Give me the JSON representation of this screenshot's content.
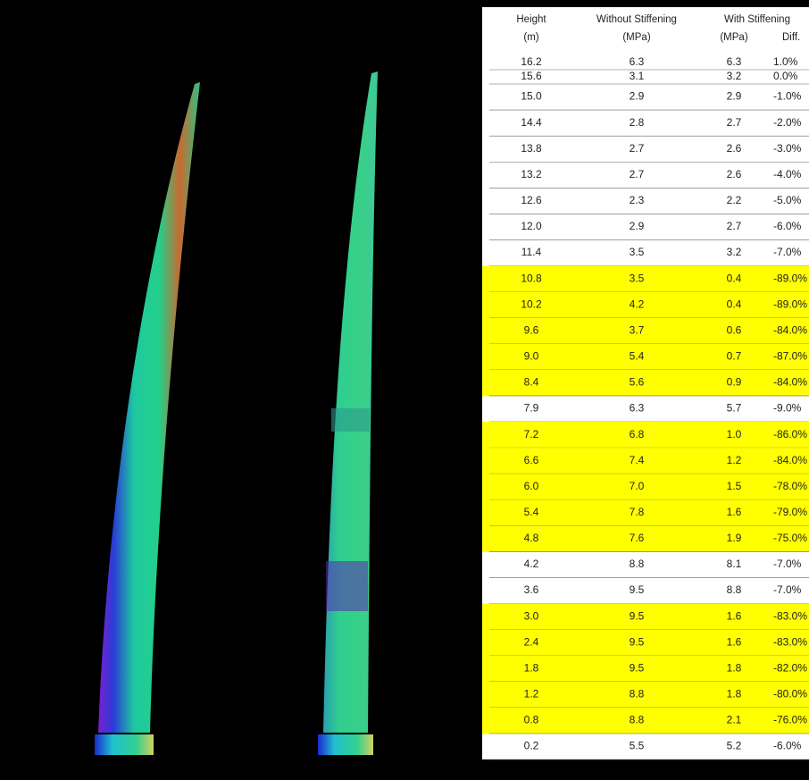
{
  "table": {
    "header_line1": [
      "Height",
      "Without Stiffening",
      "With Stiffening"
    ],
    "header_line2": [
      "(m)",
      "(MPa)",
      "(MPa)",
      "Diff."
    ],
    "rows": [
      {
        "cells": [
          "16.2",
          "6.3",
          "6.3",
          "1.0%"
        ],
        "highlight": false
      },
      {
        "cells": [
          "15.6",
          "3.1",
          "3.2",
          "0.0%"
        ],
        "highlight": false
      },
      {
        "cells": [
          "15.0",
          "2.9",
          "2.9",
          "-1.0%"
        ],
        "highlight": false
      },
      {
        "cells": [
          "14.4",
          "2.8",
          "2.7",
          "-2.0%"
        ],
        "highlight": false
      },
      {
        "cells": [
          "13.8",
          "2.7",
          "2.6",
          "-3.0%"
        ],
        "highlight": false
      },
      {
        "cells": [
          "13.2",
          "2.7",
          "2.6",
          "-4.0%"
        ],
        "highlight": false
      },
      {
        "cells": [
          "12.6",
          "2.3",
          "2.2",
          "-5.0%"
        ],
        "highlight": false
      },
      {
        "cells": [
          "12.0",
          "2.9",
          "2.7",
          "-6.0%"
        ],
        "highlight": false
      },
      {
        "cells": [
          "11.4",
          "3.5",
          "3.2",
          "-7.0%"
        ],
        "highlight": false
      },
      {
        "cells": [
          "10.8",
          "3.5",
          "0.4",
          "-89.0%"
        ],
        "highlight": true
      },
      {
        "cells": [
          "10.2",
          "4.2",
          "0.4",
          "-89.0%"
        ],
        "highlight": true
      },
      {
        "cells": [
          "9.6",
          "3.7",
          "0.6",
          "-84.0%"
        ],
        "highlight": true
      },
      {
        "cells": [
          "9.0",
          "5.4",
          "0.7",
          "-87.0%"
        ],
        "highlight": true
      },
      {
        "cells": [
          "8.4",
          "5.6",
          "0.9",
          "-84.0%"
        ],
        "highlight": true
      },
      {
        "cells": [
          "7.9",
          "6.3",
          "5.7",
          "-9.0%"
        ],
        "highlight": false
      },
      {
        "cells": [
          "7.2",
          "6.8",
          "1.0",
          "-86.0%"
        ],
        "highlight": true
      },
      {
        "cells": [
          "6.6",
          "7.4",
          "1.2",
          "-84.0%"
        ],
        "highlight": true
      },
      {
        "cells": [
          "6.0",
          "7.0",
          "1.5",
          "-78.0%"
        ],
        "highlight": true
      },
      {
        "cells": [
          "5.4",
          "7.8",
          "1.6",
          "-79.0%"
        ],
        "highlight": true
      },
      {
        "cells": [
          "4.8",
          "7.6",
          "1.9",
          "-75.0%"
        ],
        "highlight": true
      },
      {
        "cells": [
          "4.2",
          "8.8",
          "8.1",
          "-7.0%"
        ],
        "highlight": false
      },
      {
        "cells": [
          "3.6",
          "9.5",
          "8.8",
          "-7.0%"
        ],
        "highlight": false
      },
      {
        "cells": [
          "3.0",
          "9.5",
          "1.6",
          "-83.0%"
        ],
        "highlight": true
      },
      {
        "cells": [
          "2.4",
          "9.5",
          "1.6",
          "-83.0%"
        ],
        "highlight": true
      },
      {
        "cells": [
          "1.8",
          "9.5",
          "1.8",
          "-82.0%"
        ],
        "highlight": true
      },
      {
        "cells": [
          "1.2",
          "8.8",
          "1.8",
          "-80.0%"
        ],
        "highlight": true
      },
      {
        "cells": [
          "0.8",
          "8.8",
          "2.1",
          "-76.0%"
        ],
        "highlight": true
      },
      {
        "cells": [
          "0.2",
          "5.5",
          "5.2",
          "-6.0%"
        ],
        "highlight": false
      }
    ]
  }
}
